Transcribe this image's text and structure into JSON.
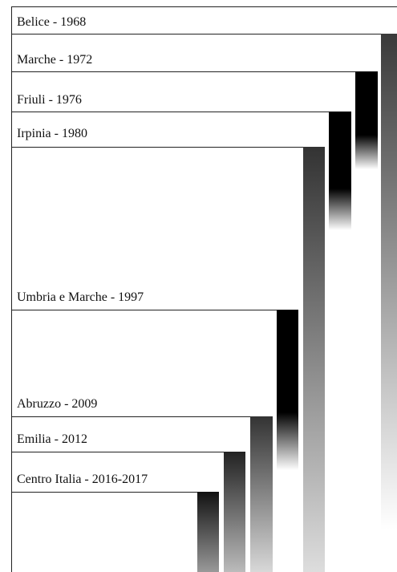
{
  "events": [
    {
      "label": "Belice - 1968"
    },
    {
      "label": "Marche - 1972"
    },
    {
      "label": "Friuli - 1976"
    },
    {
      "label": "Irpinia - 1980"
    },
    {
      "label": "Umbria e Marche - 1997"
    },
    {
      "label": "Abruzzo - 2009"
    },
    {
      "label": "Emilia - 2012"
    },
    {
      "label": "Centro Italia - 2016-2017"
    }
  ]
}
